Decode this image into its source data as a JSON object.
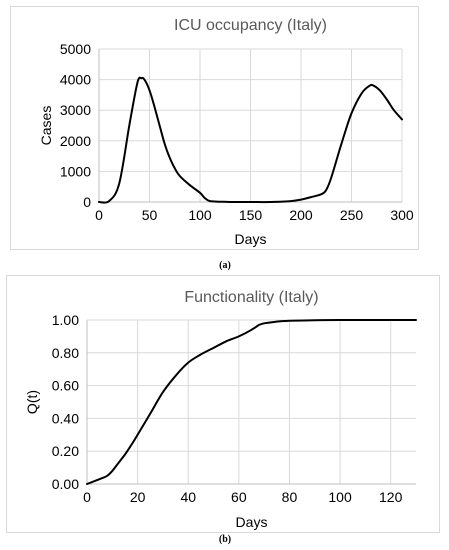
{
  "chart_data": [
    {
      "type": "line",
      "title": "ICU occupancy (Italy)",
      "xlabel": "Days",
      "ylabel": "Cases",
      "xlim": [
        0,
        300
      ],
      "ylim": [
        0,
        5000
      ],
      "xticks": [
        0,
        50,
        100,
        150,
        200,
        250,
        300
      ],
      "yticks": [
        0,
        1000,
        2000,
        3000,
        4000,
        5000
      ],
      "xtick_labels": [
        "0",
        "50",
        "100",
        "150",
        "200",
        "250",
        "300"
      ],
      "ytick_labels": [
        "0",
        "1000",
        "2000",
        "3000",
        "4000",
        "5000"
      ],
      "grid": true,
      "series": [
        {
          "x": [
            0,
            10,
            20,
            30,
            38,
            42,
            45,
            50,
            55,
            60,
            65,
            70,
            75,
            80,
            90,
            100,
            105,
            110,
            120,
            130,
            150,
            170,
            190,
            200,
            210,
            220,
            225,
            230,
            240,
            250,
            260,
            268,
            272,
            278,
            285,
            292,
            300
          ],
          "y": [
            0,
            30,
            600,
            2500,
            3900,
            4050,
            4000,
            3650,
            3100,
            2500,
            1900,
            1450,
            1100,
            850,
            550,
            300,
            120,
            30,
            10,
            0,
            0,
            0,
            30,
            80,
            160,
            250,
            400,
            800,
            1900,
            2900,
            3550,
            3800,
            3800,
            3650,
            3350,
            3000,
            2700
          ]
        }
      ]
    },
    {
      "type": "line",
      "title": "Functionality (Italy)",
      "xlabel": "Days",
      "ylabel": "Q(t)",
      "xlim": [
        0,
        130
      ],
      "ylim": [
        0,
        1
      ],
      "xticks": [
        0,
        20,
        40,
        60,
        80,
        100,
        120
      ],
      "yticks": [
        0,
        0.2,
        0.4,
        0.6,
        0.8,
        1.0
      ],
      "xtick_labels": [
        "0",
        "20",
        "40",
        "60",
        "80",
        "100",
        "120"
      ],
      "ytick_labels": [
        "0.00",
        "0.20",
        "0.40",
        "0.60",
        "0.80",
        "1.00"
      ],
      "grid": true,
      "series": [
        {
          "x": [
            0,
            5,
            8,
            10,
            12,
            15,
            18,
            20,
            25,
            30,
            35,
            40,
            45,
            50,
            55,
            60,
            65,
            68,
            70,
            75,
            80,
            90,
            100,
            110,
            120,
            130
          ],
          "y": [
            0,
            0.03,
            0.05,
            0.08,
            0.12,
            0.18,
            0.25,
            0.3,
            0.43,
            0.56,
            0.66,
            0.74,
            0.79,
            0.83,
            0.87,
            0.9,
            0.94,
            0.97,
            0.98,
            0.99,
            0.995,
            0.999,
            1.0,
            1.0,
            1.0,
            1.0
          ]
        }
      ]
    }
  ],
  "captions": {
    "a": "(a)",
    "b": "(b)"
  }
}
